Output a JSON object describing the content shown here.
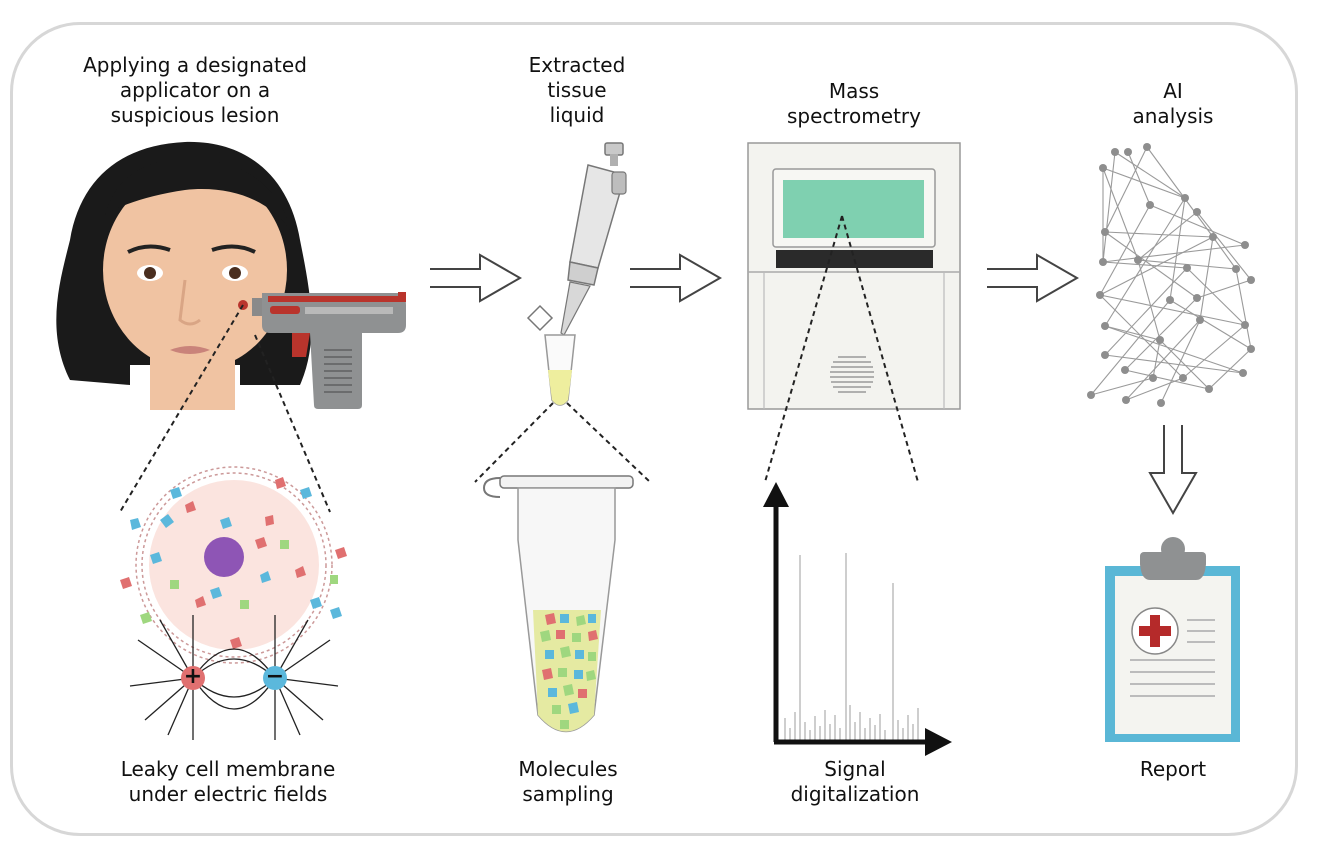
{
  "labels": {
    "applicator": "Applying a designated\napplicator on a\nsuspicious lesion",
    "extracted": "Extracted\ntissue\nliquid",
    "mass": "Mass\nspectrometry",
    "ai": "AI\nanalysis",
    "leaky": "Leaky cell membrane\nunder electric fields",
    "molecules": "Molecules\nsampling",
    "signal": "Signal\ndigitalization",
    "report": "Report"
  },
  "charges": {
    "positive": "+",
    "negative": "−"
  },
  "colors": {
    "molecule_red": "#e07070",
    "molecule_blue": "#5bb8dc",
    "molecule_green": "#9fd77f",
    "nucleus": "#8e55b5",
    "screen": "#7fd0b0",
    "report_frame": "#5ab7d6",
    "red_cross": "#b52a2a",
    "applicator_red": "#b9342c"
  },
  "icons": [
    "woman-face-icon",
    "applicator-gun-icon",
    "pipette-icon",
    "tube-icon",
    "mass-spectrometer-icon",
    "neural-network-icon",
    "clipboard-report-icon",
    "arrow-right-icon",
    "arrow-down-icon"
  ]
}
